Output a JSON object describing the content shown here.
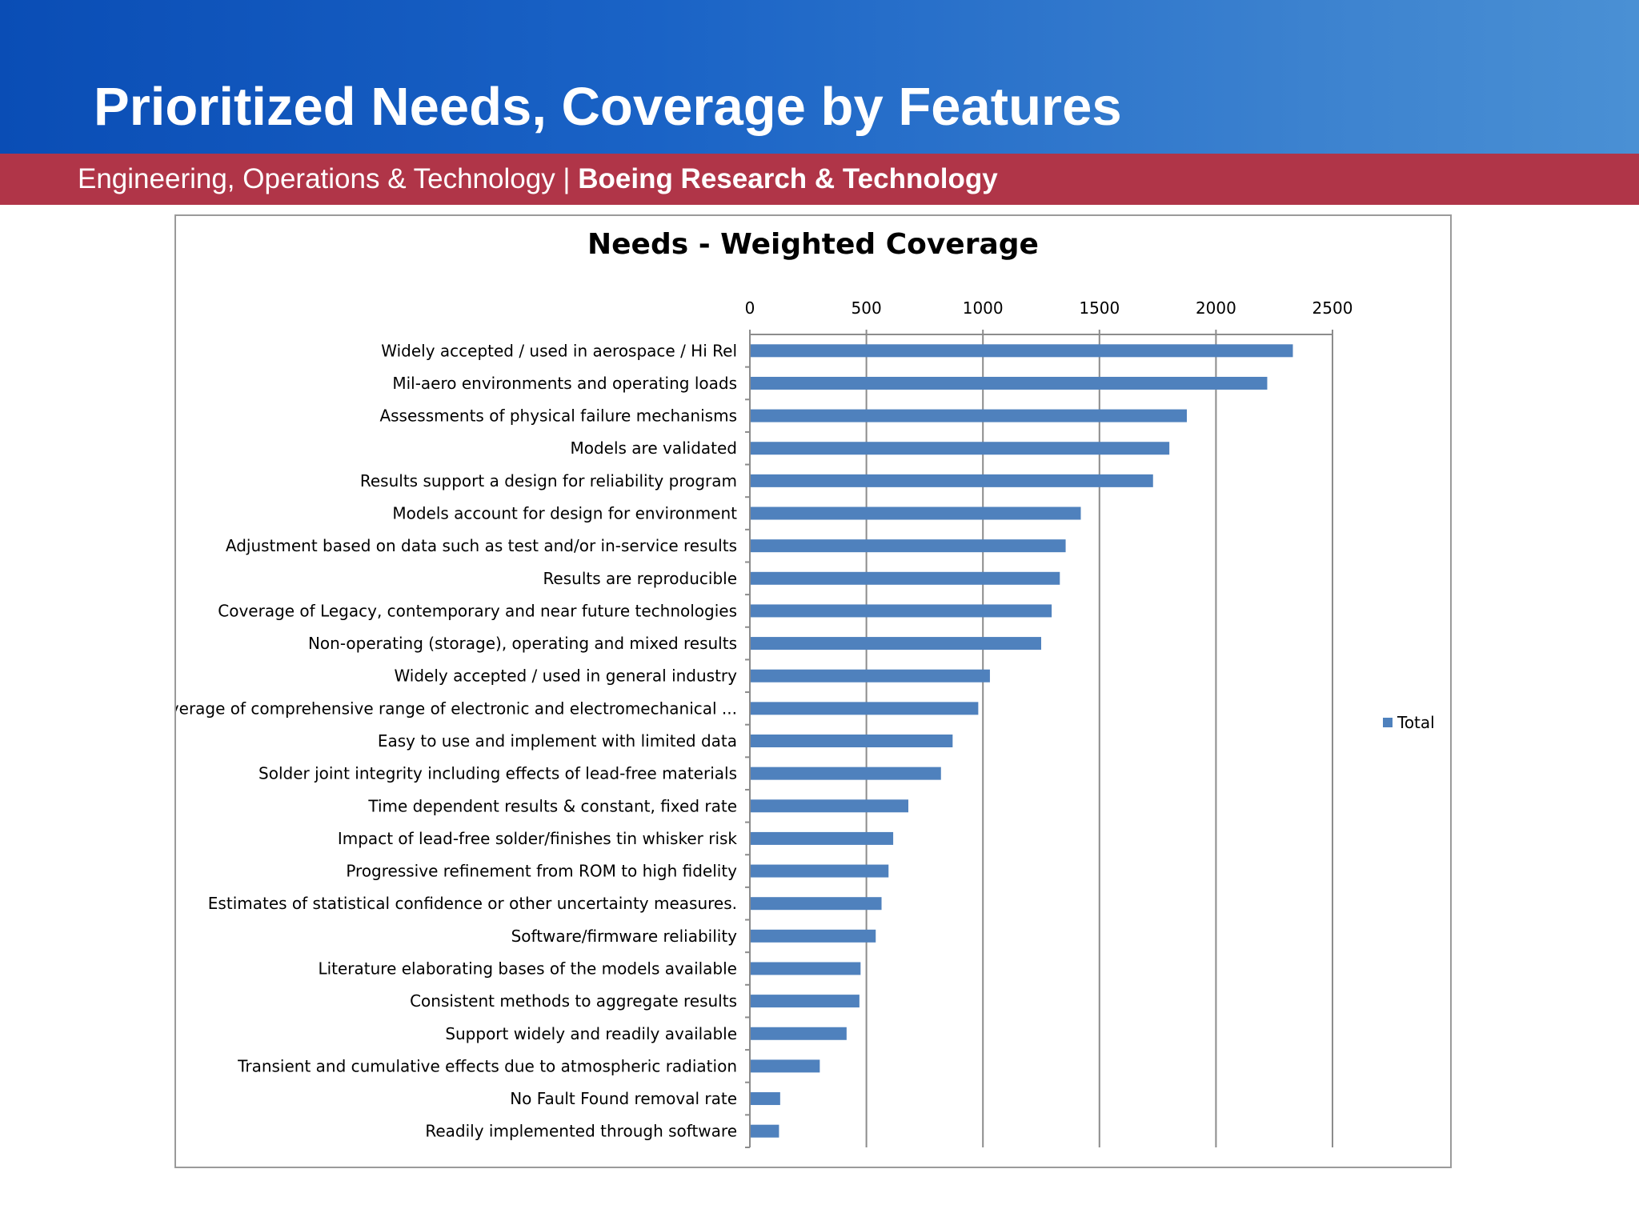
{
  "slide": {
    "title": "Prioritized Needs, Coverage by Features",
    "subtitle_regular": "Engineering, Operations & Technology | ",
    "subtitle_bold": "Boeing Research & Technology"
  },
  "colors": {
    "bar": "#4f81bd",
    "subheader": "#b03548"
  },
  "chart_data": {
    "type": "bar",
    "orientation": "horizontal",
    "title": "Needs - Weighted Coverage",
    "xlabel": "",
    "ylabel": "",
    "xlim": [
      0,
      2500
    ],
    "xticks": [
      "0",
      "500",
      "1000",
      "1500",
      "2000",
      "2500"
    ],
    "grid": "vertical",
    "legend_position": "right",
    "categories": [
      "Widely accepted / used in aerospace / Hi Rel",
      "Mil-aero environments and operating loads",
      "Assessments of physical failure mechanisms",
      "Models are validated",
      "Results support a design for reliability program",
      "Models account for design for environment",
      "Adjustment based on data such as test and/or in-service results",
      "Results are reproducible",
      "Coverage of Legacy, contemporary and near future technologies",
      "Non-operating (storage), operating and mixed results",
      "Widely accepted / used in general industry",
      "Coverage of comprehensive range of electronic and electromechanical ...",
      "Easy to use and implement with limited data",
      "Solder joint integrity including effects of lead-free materials",
      "Time dependent results & constant, fixed rate",
      "Impact of lead-free solder/finishes tin whisker risk",
      "Progressive refinement from ROM to high fidelity",
      "Estimates of statistical confidence or other uncertainty measures.",
      "Software/firmware reliability",
      "Literature elaborating bases of the models available",
      "Consistent methods to aggregate results",
      "Support widely and readily available",
      "Transient and cumulative effects due to atmospheric radiation",
      "No Fault Found removal rate",
      "Readily implemented through software"
    ],
    "series": [
      {
        "name": "Total",
        "values": [
          2330,
          2220,
          1875,
          1800,
          1730,
          1420,
          1355,
          1330,
          1295,
          1250,
          1030,
          980,
          870,
          820,
          680,
          615,
          595,
          565,
          540,
          475,
          470,
          415,
          300,
          130,
          125
        ]
      }
    ]
  }
}
